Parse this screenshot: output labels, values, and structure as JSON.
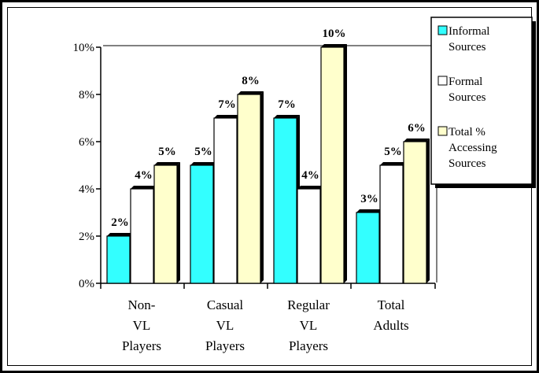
{
  "chart_data": {
    "type": "bar",
    "bar_style": "3d",
    "categories": [
      [
        "Non-",
        "VL",
        "Players"
      ],
      [
        "Casual",
        "VL",
        "Players"
      ],
      [
        "Regular",
        "VL",
        "Players"
      ],
      [
        "Total",
        "Adults"
      ]
    ],
    "series": [
      {
        "name": [
          "Informal",
          "Sources"
        ],
        "values": [
          2,
          5,
          7,
          3
        ],
        "color": "#33ffff"
      },
      {
        "name": [
          "Formal",
          "Sources"
        ],
        "values": [
          4,
          7,
          4,
          5
        ],
        "color": "#ffffff"
      },
      {
        "name": [
          "Total %",
          "Accessing",
          "Sources"
        ],
        "values": [
          5,
          8,
          10,
          6
        ],
        "color": "#ffffcc"
      }
    ],
    "data_labels": [
      [
        "2%",
        "4%",
        "5%"
      ],
      [
        "5%",
        "7%",
        "8%"
      ],
      [
        "7%",
        "4%",
        "10%"
      ],
      [
        "3%",
        "5%",
        "6%"
      ]
    ],
    "y_ticks": [
      "0%",
      "2%",
      "4%",
      "6%",
      "8%",
      "10%"
    ],
    "ylim": [
      0,
      10
    ],
    "grid": false,
    "legend_position": "top-right",
    "title": "",
    "xlabel": "",
    "ylabel": ""
  }
}
